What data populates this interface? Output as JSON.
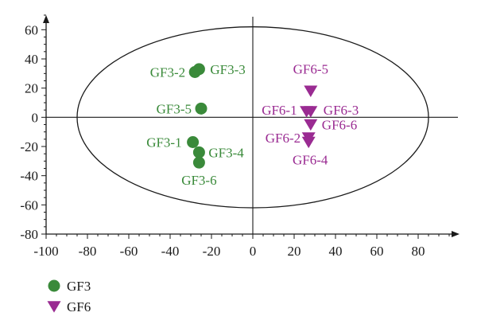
{
  "chart_data": {
    "type": "scatter",
    "title": "",
    "xlabel": "",
    "ylabel": "",
    "xlim": [
      -100,
      100
    ],
    "ylim": [
      -80,
      70
    ],
    "x_ticks": [
      -100,
      -80,
      -60,
      -40,
      -20,
      0,
      20,
      40,
      60,
      80
    ],
    "y_ticks": [
      60,
      40,
      20,
      0,
      -20,
      -40,
      -60,
      -80
    ],
    "grid": false,
    "axes_cross_at_zero": true,
    "ellipse": {
      "center": [
        0,
        0
      ],
      "semi_axis_x": 85,
      "semi_axis_y": 62
    },
    "series": [
      {
        "name": "GF3",
        "marker": "circle",
        "color": "#3a8a3a",
        "label_color": "#3a8a3a",
        "points": [
          {
            "label": "GF3-1",
            "x": -29,
            "y": -17
          },
          {
            "label": "GF3-2",
            "x": -28,
            "y": 31
          },
          {
            "label": "GF3-3",
            "x": -26,
            "y": 33
          },
          {
            "label": "GF3-4",
            "x": -26,
            "y": -24
          },
          {
            "label": "GF3-5",
            "x": -25,
            "y": 6
          },
          {
            "label": "GF3-6",
            "x": -26,
            "y": -31
          }
        ]
      },
      {
        "name": "GF6",
        "marker": "triangle-down",
        "color": "#9a2b92",
        "label_color": "#9a2b92",
        "points": [
          {
            "label": "GF6-1",
            "x": 26,
            "y": 4
          },
          {
            "label": "GF6-2",
            "x": 27,
            "y": -14
          },
          {
            "label": "GF6-3",
            "x": 28,
            "y": 4
          },
          {
            "label": "GF6-4",
            "x": 27,
            "y": -17
          },
          {
            "label": "GF6-5",
            "x": 28,
            "y": 18
          },
          {
            "label": "GF6-6",
            "x": 28,
            "y": -5
          }
        ]
      }
    ],
    "legend": {
      "placement": "bottom-left",
      "entries": [
        {
          "name": "GF3",
          "marker": "circle",
          "color": "#3a8a3a"
        },
        {
          "name": "GF6",
          "marker": "triangle-down",
          "color": "#9a2b92"
        }
      ]
    }
  }
}
